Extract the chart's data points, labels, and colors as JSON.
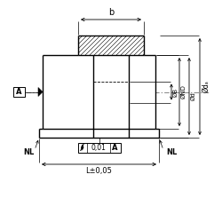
{
  "bg_color": "#ffffff",
  "line_color": "#000000",
  "dim_labels": {
    "b": "b",
    "L": "L±0,05",
    "NL_left": "NL",
    "NL_right": "NL",
    "dB": "ØB",
    "dND": "ØND",
    "d": "Ød",
    "da": "Ødₐ",
    "A_label": "A",
    "tol_label": "0,01",
    "tol_A": "A"
  },
  "figsize": [
    2.5,
    2.5
  ],
  "dpi": 100
}
